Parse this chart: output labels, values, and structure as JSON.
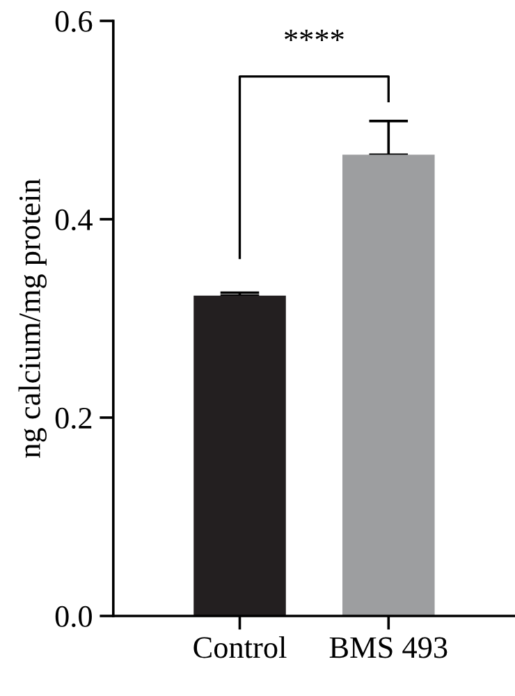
{
  "chart_data": {
    "type": "bar",
    "ylabel": "ng calcium/mg protein",
    "categories": [
      "Control",
      "BMS 493"
    ],
    "values": [
      0.323,
      0.465
    ],
    "colors": [
      "#231f20",
      "#9d9ea0"
    ],
    "errors": [
      0.003,
      0.034
    ],
    "ylim": [
      0,
      0.6
    ],
    "yticks": [
      {
        "value": 0,
        "label": "0.0"
      },
      {
        "value": 0.2,
        "label": "0.2"
      },
      {
        "value": 0.4,
        "label": "0.4"
      },
      {
        "value": 0.6,
        "label": "0.6"
      }
    ],
    "grid": false,
    "legend": false,
    "annotations": [
      "****"
    ]
  }
}
